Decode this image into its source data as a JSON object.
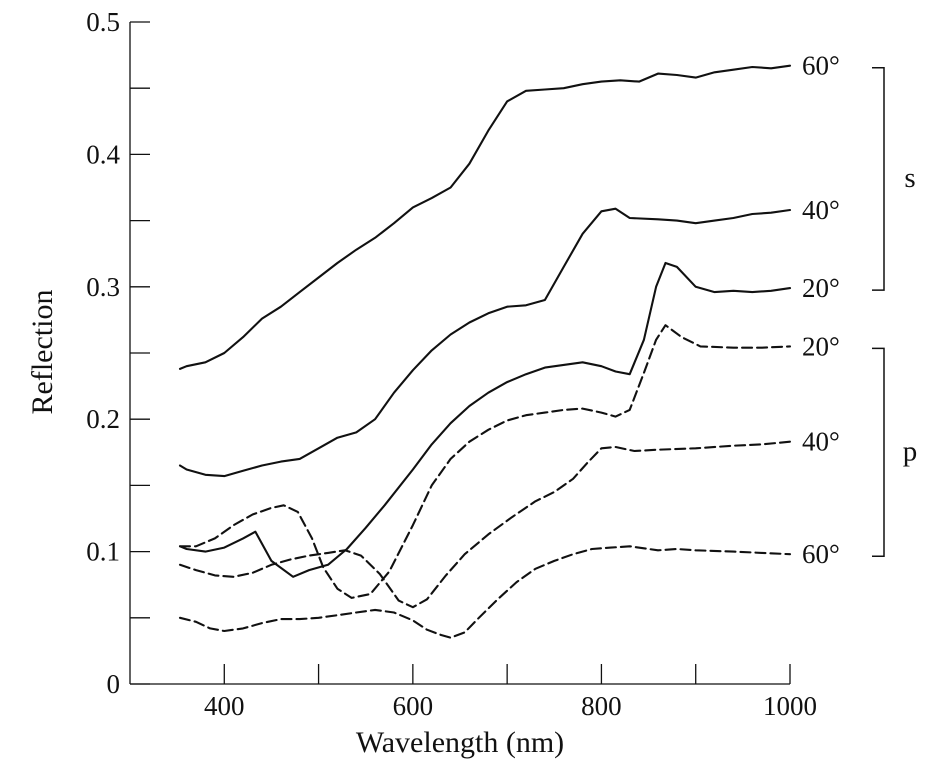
{
  "chart_data": {
    "type": "line",
    "title": "",
    "xlabel": "Wavelength (nm)",
    "ylabel": "Reflection",
    "xlim": [
      300,
      1000
    ],
    "ylim": [
      0,
      0.5
    ],
    "x_ticks": [
      400,
      600,
      800,
      1000
    ],
    "x_minor_ticks": [
      500,
      700,
      900
    ],
    "y_ticks": [
      0,
      0.1,
      0.2,
      0.3,
      0.4,
      0.5
    ],
    "y_tick_labels": [
      "0",
      "0.1",
      "0.2",
      "0.3",
      "0.4",
      "0.5"
    ],
    "y_minor_ticks": [
      0.05,
      0.15,
      0.25,
      0.35,
      0.45
    ],
    "groups": [
      {
        "label": "s",
        "series": [
          0,
          1,
          2
        ]
      },
      {
        "label": "p",
        "series": [
          3,
          4,
          5
        ]
      }
    ],
    "series": [
      {
        "name": "60°",
        "polarization": "s",
        "style": "solid",
        "points": [
          [
            353,
            0.238
          ],
          [
            360,
            0.24
          ],
          [
            380,
            0.243
          ],
          [
            400,
            0.25
          ],
          [
            420,
            0.262
          ],
          [
            440,
            0.276
          ],
          [
            460,
            0.285
          ],
          [
            480,
            0.296
          ],
          [
            500,
            0.307
          ],
          [
            520,
            0.318
          ],
          [
            540,
            0.328
          ],
          [
            560,
            0.337
          ],
          [
            580,
            0.348
          ],
          [
            600,
            0.36
          ],
          [
            620,
            0.367
          ],
          [
            640,
            0.375
          ],
          [
            660,
            0.393
          ],
          [
            680,
            0.418
          ],
          [
            700,
            0.44
          ],
          [
            720,
            0.448
          ],
          [
            740,
            0.449
          ],
          [
            760,
            0.45
          ],
          [
            780,
            0.453
          ],
          [
            800,
            0.455
          ],
          [
            820,
            0.456
          ],
          [
            840,
            0.455
          ],
          [
            860,
            0.461
          ],
          [
            880,
            0.46
          ],
          [
            900,
            0.458
          ],
          [
            920,
            0.462
          ],
          [
            940,
            0.464
          ],
          [
            960,
            0.466
          ],
          [
            980,
            0.465
          ],
          [
            1000,
            0.467
          ]
        ]
      },
      {
        "name": "40°",
        "polarization": "s",
        "style": "solid",
        "points": [
          [
            353,
            0.165
          ],
          [
            360,
            0.162
          ],
          [
            380,
            0.158
          ],
          [
            400,
            0.157
          ],
          [
            420,
            0.161
          ],
          [
            440,
            0.165
          ],
          [
            460,
            0.168
          ],
          [
            480,
            0.17
          ],
          [
            500,
            0.178
          ],
          [
            520,
            0.186
          ],
          [
            540,
            0.19
          ],
          [
            560,
            0.2
          ],
          [
            580,
            0.22
          ],
          [
            600,
            0.237
          ],
          [
            620,
            0.252
          ],
          [
            640,
            0.264
          ],
          [
            660,
            0.273
          ],
          [
            680,
            0.28
          ],
          [
            700,
            0.285
          ],
          [
            720,
            0.286
          ],
          [
            740,
            0.29
          ],
          [
            760,
            0.315
          ],
          [
            780,
            0.34
          ],
          [
            800,
            0.357
          ],
          [
            815,
            0.359
          ],
          [
            830,
            0.352
          ],
          [
            860,
            0.351
          ],
          [
            880,
            0.35
          ],
          [
            900,
            0.348
          ],
          [
            920,
            0.35
          ],
          [
            940,
            0.352
          ],
          [
            960,
            0.355
          ],
          [
            980,
            0.356
          ],
          [
            1000,
            0.358
          ]
        ]
      },
      {
        "name": "20°",
        "polarization": "s",
        "style": "solid",
        "points": [
          [
            353,
            0.104
          ],
          [
            360,
            0.102
          ],
          [
            380,
            0.1
          ],
          [
            400,
            0.103
          ],
          [
            420,
            0.11
          ],
          [
            433,
            0.115
          ],
          [
            450,
            0.093
          ],
          [
            473,
            0.081
          ],
          [
            490,
            0.086
          ],
          [
            510,
            0.09
          ],
          [
            530,
            0.102
          ],
          [
            550,
            0.118
          ],
          [
            570,
            0.135
          ],
          [
            600,
            0.162
          ],
          [
            620,
            0.181
          ],
          [
            640,
            0.197
          ],
          [
            660,
            0.21
          ],
          [
            680,
            0.22
          ],
          [
            700,
            0.228
          ],
          [
            720,
            0.234
          ],
          [
            740,
            0.239
          ],
          [
            760,
            0.241
          ],
          [
            780,
            0.243
          ],
          [
            800,
            0.24
          ],
          [
            815,
            0.236
          ],
          [
            830,
            0.234
          ],
          [
            845,
            0.26
          ],
          [
            858,
            0.3
          ],
          [
            868,
            0.318
          ],
          [
            880,
            0.315
          ],
          [
            900,
            0.3
          ],
          [
            920,
            0.296
          ],
          [
            940,
            0.297
          ],
          [
            960,
            0.296
          ],
          [
            980,
            0.297
          ],
          [
            1000,
            0.299
          ]
        ]
      },
      {
        "name": "20°",
        "polarization": "p",
        "style": "dashed",
        "points": [
          [
            353,
            0.104
          ],
          [
            370,
            0.104
          ],
          [
            390,
            0.11
          ],
          [
            410,
            0.12
          ],
          [
            430,
            0.128
          ],
          [
            450,
            0.133
          ],
          [
            463,
            0.135
          ],
          [
            478,
            0.13
          ],
          [
            493,
            0.11
          ],
          [
            505,
            0.088
          ],
          [
            520,
            0.072
          ],
          [
            535,
            0.065
          ],
          [
            555,
            0.068
          ],
          [
            575,
            0.085
          ],
          [
            600,
            0.12
          ],
          [
            620,
            0.15
          ],
          [
            640,
            0.17
          ],
          [
            660,
            0.183
          ],
          [
            680,
            0.192
          ],
          [
            700,
            0.199
          ],
          [
            720,
            0.203
          ],
          [
            740,
            0.205
          ],
          [
            760,
            0.207
          ],
          [
            780,
            0.208
          ],
          [
            800,
            0.205
          ],
          [
            815,
            0.202
          ],
          [
            830,
            0.207
          ],
          [
            845,
            0.235
          ],
          [
            858,
            0.26
          ],
          [
            868,
            0.271
          ],
          [
            885,
            0.262
          ],
          [
            905,
            0.255
          ],
          [
            940,
            0.254
          ],
          [
            970,
            0.254
          ],
          [
            1000,
            0.255
          ]
        ]
      },
      {
        "name": "40°",
        "polarization": "p",
        "style": "dashed",
        "points": [
          [
            353,
            0.09
          ],
          [
            370,
            0.086
          ],
          [
            390,
            0.082
          ],
          [
            410,
            0.081
          ],
          [
            430,
            0.084
          ],
          [
            450,
            0.09
          ],
          [
            470,
            0.094
          ],
          [
            490,
            0.097
          ],
          [
            510,
            0.099
          ],
          [
            528,
            0.101
          ],
          [
            545,
            0.097
          ],
          [
            565,
            0.083
          ],
          [
            585,
            0.063
          ],
          [
            600,
            0.058
          ],
          [
            615,
            0.064
          ],
          [
            635,
            0.082
          ],
          [
            655,
            0.098
          ],
          [
            680,
            0.113
          ],
          [
            705,
            0.126
          ],
          [
            730,
            0.138
          ],
          [
            750,
            0.145
          ],
          [
            770,
            0.155
          ],
          [
            785,
            0.167
          ],
          [
            800,
            0.178
          ],
          [
            815,
            0.179
          ],
          [
            835,
            0.176
          ],
          [
            860,
            0.177
          ],
          [
            900,
            0.178
          ],
          [
            940,
            0.18
          ],
          [
            970,
            0.181
          ],
          [
            1000,
            0.183
          ]
        ]
      },
      {
        "name": "60°",
        "polarization": "p",
        "style": "dashed",
        "points": [
          [
            353,
            0.05
          ],
          [
            370,
            0.047
          ],
          [
            385,
            0.042
          ],
          [
            400,
            0.04
          ],
          [
            420,
            0.042
          ],
          [
            440,
            0.046
          ],
          [
            460,
            0.049
          ],
          [
            480,
            0.049
          ],
          [
            500,
            0.05
          ],
          [
            520,
            0.052
          ],
          [
            540,
            0.054
          ],
          [
            560,
            0.056
          ],
          [
            580,
            0.054
          ],
          [
            600,
            0.048
          ],
          [
            615,
            0.041
          ],
          [
            630,
            0.037
          ],
          [
            640,
            0.035
          ],
          [
            655,
            0.039
          ],
          [
            670,
            0.05
          ],
          [
            690,
            0.064
          ],
          [
            710,
            0.077
          ],
          [
            730,
            0.087
          ],
          [
            750,
            0.093
          ],
          [
            770,
            0.098
          ],
          [
            790,
            0.102
          ],
          [
            810,
            0.103
          ],
          [
            830,
            0.104
          ],
          [
            860,
            0.101
          ],
          [
            880,
            0.102
          ],
          [
            900,
            0.101
          ],
          [
            940,
            0.1
          ],
          [
            970,
            0.099
          ],
          [
            1000,
            0.098
          ]
        ]
      }
    ]
  }
}
